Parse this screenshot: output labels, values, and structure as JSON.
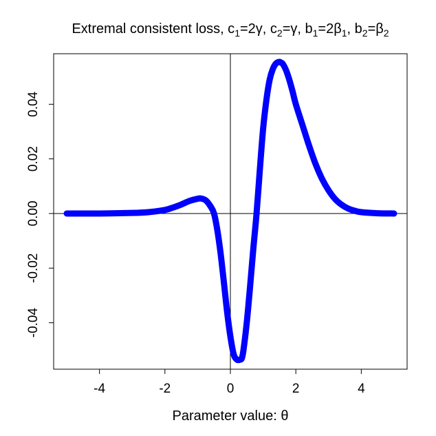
{
  "chart_data": {
    "type": "line",
    "title_parts": [
      {
        "t": "Extremal consistent loss, c"
      },
      {
        "t": "1",
        "sub": true
      },
      {
        "t": "=2γ, c"
      },
      {
        "t": "2",
        "sub": true
      },
      {
        "t": "=γ, b"
      },
      {
        "t": "1",
        "sub": true
      },
      {
        "t": "=2β"
      },
      {
        "t": "1",
        "sub": true
      },
      {
        "t": ", b"
      },
      {
        "t": "2",
        "sub": true
      },
      {
        "t": "=β"
      },
      {
        "t": "2",
        "sub": true
      }
    ],
    "xlabel": "Parameter value: θ",
    "ylabel": "",
    "xlim": [
      -5.4,
      5.4
    ],
    "ylim": [
      -0.057,
      0.0585
    ],
    "x_ticks": [
      -4,
      -2,
      0,
      2,
      4
    ],
    "x_tick_labels": [
      "-4",
      "-2",
      "0",
      "2",
      "4"
    ],
    "y_ticks": [
      -0.04,
      -0.02,
      0.0,
      0.02,
      0.04
    ],
    "y_tick_labels": [
      "-0.04",
      "-0.02",
      "0.00",
      "0.02",
      "0.04"
    ],
    "reference_lines": {
      "vertical_x": 0,
      "horizontal_y": 0
    },
    "grid": false,
    "series": [
      {
        "color": "#0000ff",
        "x": [
          -5.0,
          -4.0,
          -3.0,
          -2.5,
          -2.0,
          -1.75,
          -1.5,
          -1.25,
          -1.0,
          -0.9,
          -0.75,
          -0.6,
          -0.5,
          -0.4,
          -0.3,
          -0.2,
          -0.1,
          0.0,
          0.1,
          0.2,
          0.3,
          0.35,
          0.4,
          0.5,
          0.6,
          0.7,
          0.8,
          0.9,
          1.0,
          1.1,
          1.2,
          1.3,
          1.4,
          1.5,
          1.55,
          1.6,
          1.7,
          1.8,
          1.9,
          2.0,
          2.2,
          2.4,
          2.6,
          2.8,
          3.0,
          3.2,
          3.4,
          3.6,
          3.8,
          4.0,
          4.5,
          5.0
        ],
        "y": [
          0.0,
          0.0,
          0.0002,
          0.0005,
          0.0013,
          0.0022,
          0.0033,
          0.0046,
          0.0054,
          0.0055,
          0.0048,
          0.0025,
          0.0,
          -0.006,
          -0.0145,
          -0.025,
          -0.036,
          -0.045,
          -0.0515,
          -0.0535,
          -0.0535,
          -0.053,
          -0.05,
          -0.04,
          -0.027,
          -0.013,
          0.0,
          0.016,
          0.031,
          0.0415,
          0.049,
          0.053,
          0.055,
          0.0555,
          0.0552,
          0.0548,
          0.0525,
          0.049,
          0.0447,
          0.04,
          0.0325,
          0.025,
          0.0182,
          0.0127,
          0.0085,
          0.0053,
          0.0032,
          0.0018,
          0.001,
          0.0005,
          0.0001,
          0.0
        ]
      }
    ]
  }
}
